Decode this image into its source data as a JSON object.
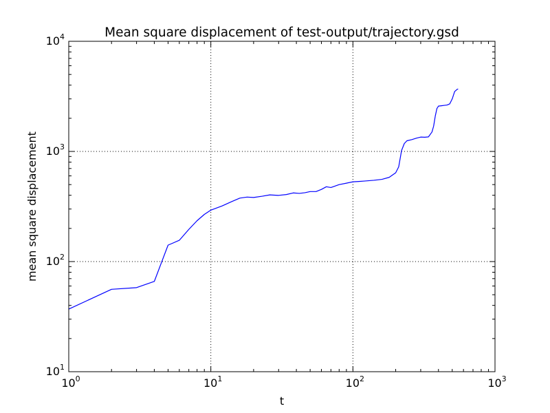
{
  "chart_data": {
    "type": "line",
    "title": "Mean square displacement of test-output/trajectory.gsd",
    "xlabel": "t",
    "ylabel": "mean square displacement",
    "xscale": "log",
    "yscale": "log",
    "xlim": [
      1,
      1000
    ],
    "ylim": [
      10,
      10000
    ],
    "grid": true,
    "x_ticks": [
      {
        "base": "10",
        "exp": "0",
        "value": 1
      },
      {
        "base": "10",
        "exp": "1",
        "value": 10
      },
      {
        "base": "10",
        "exp": "2",
        "value": 100
      },
      {
        "base": "10",
        "exp": "3",
        "value": 1000
      }
    ],
    "y_ticks": [
      {
        "base": "10",
        "exp": "1",
        "value": 10
      },
      {
        "base": "10",
        "exp": "2",
        "value": 100
      },
      {
        "base": "10",
        "exp": "3",
        "value": 1000
      },
      {
        "base": "10",
        "exp": "4",
        "value": 10000
      }
    ],
    "series": [
      {
        "color": "#0000ff",
        "x": [
          1,
          2,
          3,
          4,
          5,
          6,
          7,
          8,
          9,
          10,
          12,
          14,
          16,
          18,
          20,
          23,
          26,
          30,
          34,
          38,
          42,
          46,
          50,
          55,
          60,
          65,
          70,
          80,
          90,
          100,
          110,
          120,
          140,
          160,
          180,
          200,
          210,
          220,
          230,
          240,
          260,
          280,
          300,
          320,
          340,
          360,
          370,
          380,
          390,
          400,
          420,
          440,
          460,
          480,
          500,
          520,
          540,
          550
        ],
        "y": [
          37,
          56,
          58,
          66,
          141,
          156,
          196,
          235,
          268,
          293,
          320,
          350,
          377,
          385,
          382,
          392,
          403,
          399,
          406,
          420,
          416,
          422,
          432,
          432,
          452,
          478,
          470,
          500,
          515,
          530,
          534,
          538,
          547,
          558,
          582,
          640,
          725,
          1020,
          1180,
          1250,
          1280,
          1320,
          1350,
          1345,
          1355,
          1500,
          1700,
          2100,
          2450,
          2580,
          2600,
          2620,
          2640,
          2700,
          3000,
          3500,
          3650,
          3700
        ]
      }
    ]
  }
}
